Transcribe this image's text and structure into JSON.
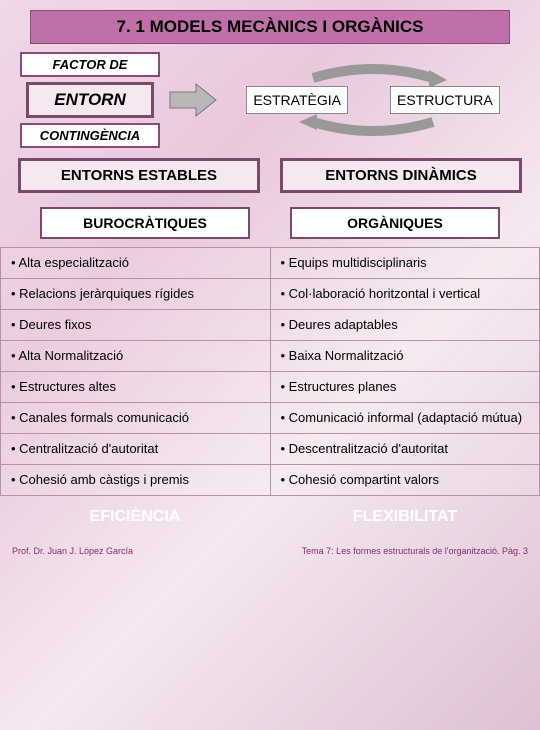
{
  "title": "7. 1 MODELS MECÀNICS I ORGÀNICS",
  "factor": {
    "label_top": "FACTOR DE",
    "entorn": "ENTORN",
    "label_bottom": "CONTINGÈNCIA"
  },
  "cycle": {
    "left": "ESTRATÈGIA",
    "right": "ESTRUCTURA"
  },
  "headers": {
    "left": "ENTORNS ESTABLES",
    "right": "ENTORNS DINÀMICS"
  },
  "subs": {
    "left": "BUROCRÀTIQUES",
    "right": "ORGÀNIQUES"
  },
  "rows": [
    {
      "l": "• Alta especialització",
      "r": "• Equips multidisciplinaris"
    },
    {
      "l": "• Relacions jeràrquiques rígides",
      "r": "• Col·laboració horitzontal i vertical"
    },
    {
      "l": "• Deures fixos",
      "r": "• Deures adaptables"
    },
    {
      "l": "• Alta Normalització",
      "r": "• Baixa Normalització"
    },
    {
      "l": "• Estructures altes",
      "r": "• Estructures planes"
    },
    {
      "l": "• Canales formals comunicació",
      "r": "• Comunicació informal (adaptació mútua)"
    },
    {
      "l": "• Centralització d'autoritat",
      "r": "• Descentralització d'autoritat"
    },
    {
      "l": "• Cohesió amb càstigs i premis",
      "r": "• Cohesió compartint valors"
    }
  ],
  "footer": {
    "left": "EFICIÈNCIA",
    "right": "FLEXIBILITAT"
  },
  "page_footer": {
    "left": "Prof. Dr. Juan J. López García",
    "right": "Tema 7: Les formes estructurals de l'organització. Pàg. 3"
  },
  "colors": {
    "title_bg": "#c070a8",
    "border_dark": "#7a4a6a",
    "arrow_fill": "#b8b8b8",
    "footer_text": "#ffffff",
    "accent": "#8b2a6a"
  }
}
